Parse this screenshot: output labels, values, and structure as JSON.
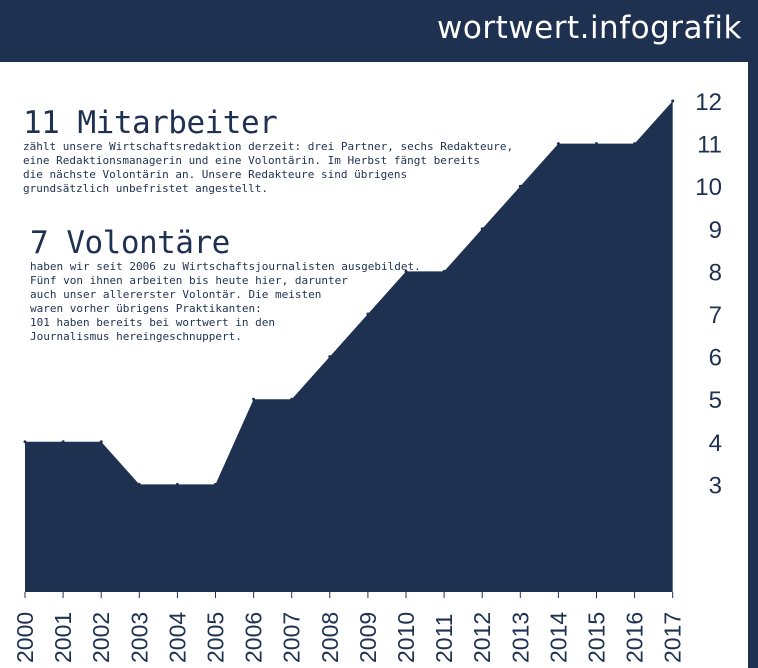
{
  "brand": "wortwert.infografik",
  "blocks": [
    {
      "heading": "11 Mitarbeiter",
      "text": "zählt unsere Wirtschaftsredaktion derzeit: drei Partner, sechs Redakteure,\neine Redaktionsmanagerin und eine Volontärin. Im Herbst fängt bereits\ndie nächste Volontärin an. Unsere Redakteure sind übrigens\ngrundsätzlich unbefristet angestellt."
    },
    {
      "heading": "7 Volontäre",
      "text": "haben wir seit 2006 zu Wirtschaftsjournalisten ausgebildet.\nFünf von ihnen arbeiten bis heute hier, darunter\nauch unser allererster Volontär. Die meisten\nwaren vorher übrigens Praktikanten:\n101 haben bereits bei wortwert in den\nJournalismus hereingeschnuppert."
    }
  ],
  "colors": {
    "fill": "#1f3150",
    "background": "#ffffff",
    "text": "#1f3150"
  },
  "chart_data": {
    "type": "area",
    "x": [
      "2000",
      "2001",
      "2002",
      "2003",
      "2004",
      "2005",
      "2006",
      "2007",
      "2008",
      "2009",
      "2010",
      "2011",
      "2012",
      "2013",
      "2014",
      "2015",
      "2016",
      "2017"
    ],
    "values": [
      4,
      4,
      4,
      3,
      3,
      3,
      5,
      5,
      6,
      7,
      8,
      8,
      9,
      10,
      11,
      11,
      11,
      12
    ],
    "y_ticks": [
      "3",
      "4",
      "5",
      "6",
      "7",
      "8",
      "9",
      "10",
      "11",
      "12"
    ],
    "y_axis_side": "right",
    "x_label_rotation": "vertical",
    "grid": false
  }
}
